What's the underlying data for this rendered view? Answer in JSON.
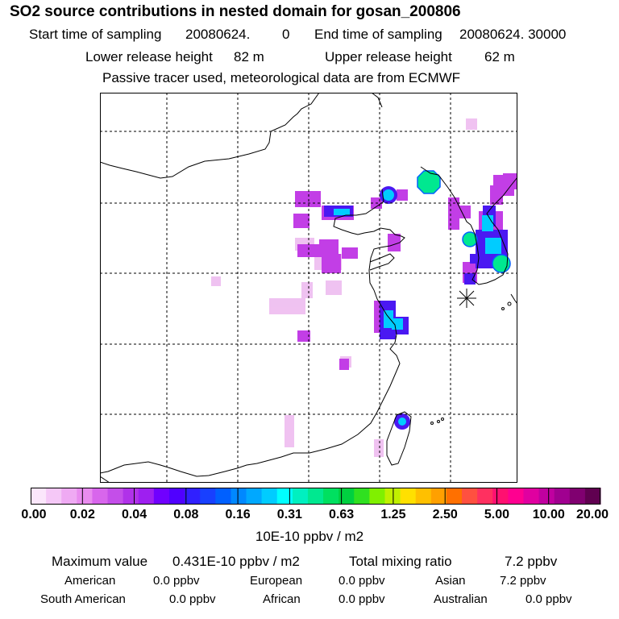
{
  "title": "SO2 source contributions in nested domain for gosan_200806",
  "header": {
    "start_label": "Start time of sampling",
    "start_value": "20080624.",
    "start_hour": "0",
    "end_label": "End time of sampling",
    "end_value": "20080624. 30000",
    "lower_label": "Lower release height",
    "lower_value": "82 m",
    "upper_label": "Upper release height",
    "upper_value": "62 m",
    "note": "Passive tracer used, meteorological data are from ECMWF"
  },
  "map": {
    "receptor": "gosan",
    "receptor_symbol": "asterisk-marker"
  },
  "colorbar": {
    "colors": [
      "#fbe6fb",
      "#f5c8f7",
      "#efaaf3",
      "#e98cef",
      "#d866ec",
      "#c44ee9",
      "#b032e9",
      "#9e1ff0",
      "#7000ff",
      "#5000ff",
      "#3020ff",
      "#1840ff",
      "#0060ff",
      "#0088ff",
      "#00a8ff",
      "#00ccff",
      "#00ffff",
      "#00f0c0",
      "#00e890",
      "#00e060",
      "#00d040",
      "#30e020",
      "#80f000",
      "#c0f000",
      "#ffe000",
      "#ffc000",
      "#ffa000",
      "#ff7000",
      "#ff5040",
      "#ff3060",
      "#ff1070",
      "#ff0090",
      "#e000a0",
      "#c000a0",
      "#a00090",
      "#800070",
      "#600050"
    ],
    "ticks": [
      "0.00",
      "0.02",
      "0.04",
      "0.08",
      "0.16",
      "0.31",
      "0.63",
      "1.25",
      "2.50",
      "5.00",
      "10.00",
      "20.00"
    ],
    "unit": "10E-10 ppbv / m2"
  },
  "stats": {
    "max_label": "Maximum value",
    "max_value": "0.431E-10 ppbv / m2",
    "total_label": "Total mixing ratio",
    "total_value": "7.2 ppbv",
    "regions": [
      {
        "name": "American",
        "value": "0.0 ppbv"
      },
      {
        "name": "European",
        "value": "0.0 ppbv"
      },
      {
        "name": "Asian",
        "value": "7.2 ppbv"
      },
      {
        "name": "South American",
        "value": "0.0 ppbv"
      },
      {
        "name": "African",
        "value": "0.0 ppbv"
      },
      {
        "name": "Australian",
        "value": "0.0 ppbv"
      }
    ]
  }
}
